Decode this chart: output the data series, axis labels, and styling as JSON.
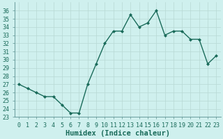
{
  "x": [
    0,
    1,
    2,
    3,
    4,
    5,
    6,
    7,
    8,
    9,
    10,
    11,
    12,
    13,
    14,
    15,
    16,
    17,
    18,
    19,
    20,
    21,
    22,
    23
  ],
  "y": [
    27.0,
    26.5,
    26.0,
    25.5,
    25.5,
    24.5,
    23.5,
    23.5,
    27.0,
    29.5,
    32.0,
    33.5,
    33.5,
    35.5,
    34.0,
    34.5,
    36.0,
    33.0,
    33.5,
    33.5,
    32.5,
    32.5,
    29.5,
    30.5
  ],
  "line_color": "#1a6b5a",
  "marker": "D",
  "marker_size": 2.0,
  "bg_color": "#cff0ee",
  "grid_color": "#b8d8d4",
  "xlabel": "Humidex (Indice chaleur)",
  "xlim": [
    -0.5,
    23.5
  ],
  "ylim": [
    23,
    37
  ],
  "yticks": [
    23,
    24,
    25,
    26,
    27,
    28,
    29,
    30,
    31,
    32,
    33,
    34,
    35,
    36
  ],
  "xtick_labels": [
    "0",
    "1",
    "2",
    "3",
    "4",
    "5",
    "6",
    "7",
    "8",
    "9",
    "10",
    "11",
    "12",
    "13",
    "14",
    "15",
    "16",
    "17",
    "18",
    "19",
    "20",
    "21",
    "22",
    "23"
  ],
  "tick_fontsize": 6.0,
  "xlabel_fontsize": 7.5,
  "linewidth": 1.0,
  "spine_color": "#5a9090",
  "tick_color": "#1a6b5a"
}
